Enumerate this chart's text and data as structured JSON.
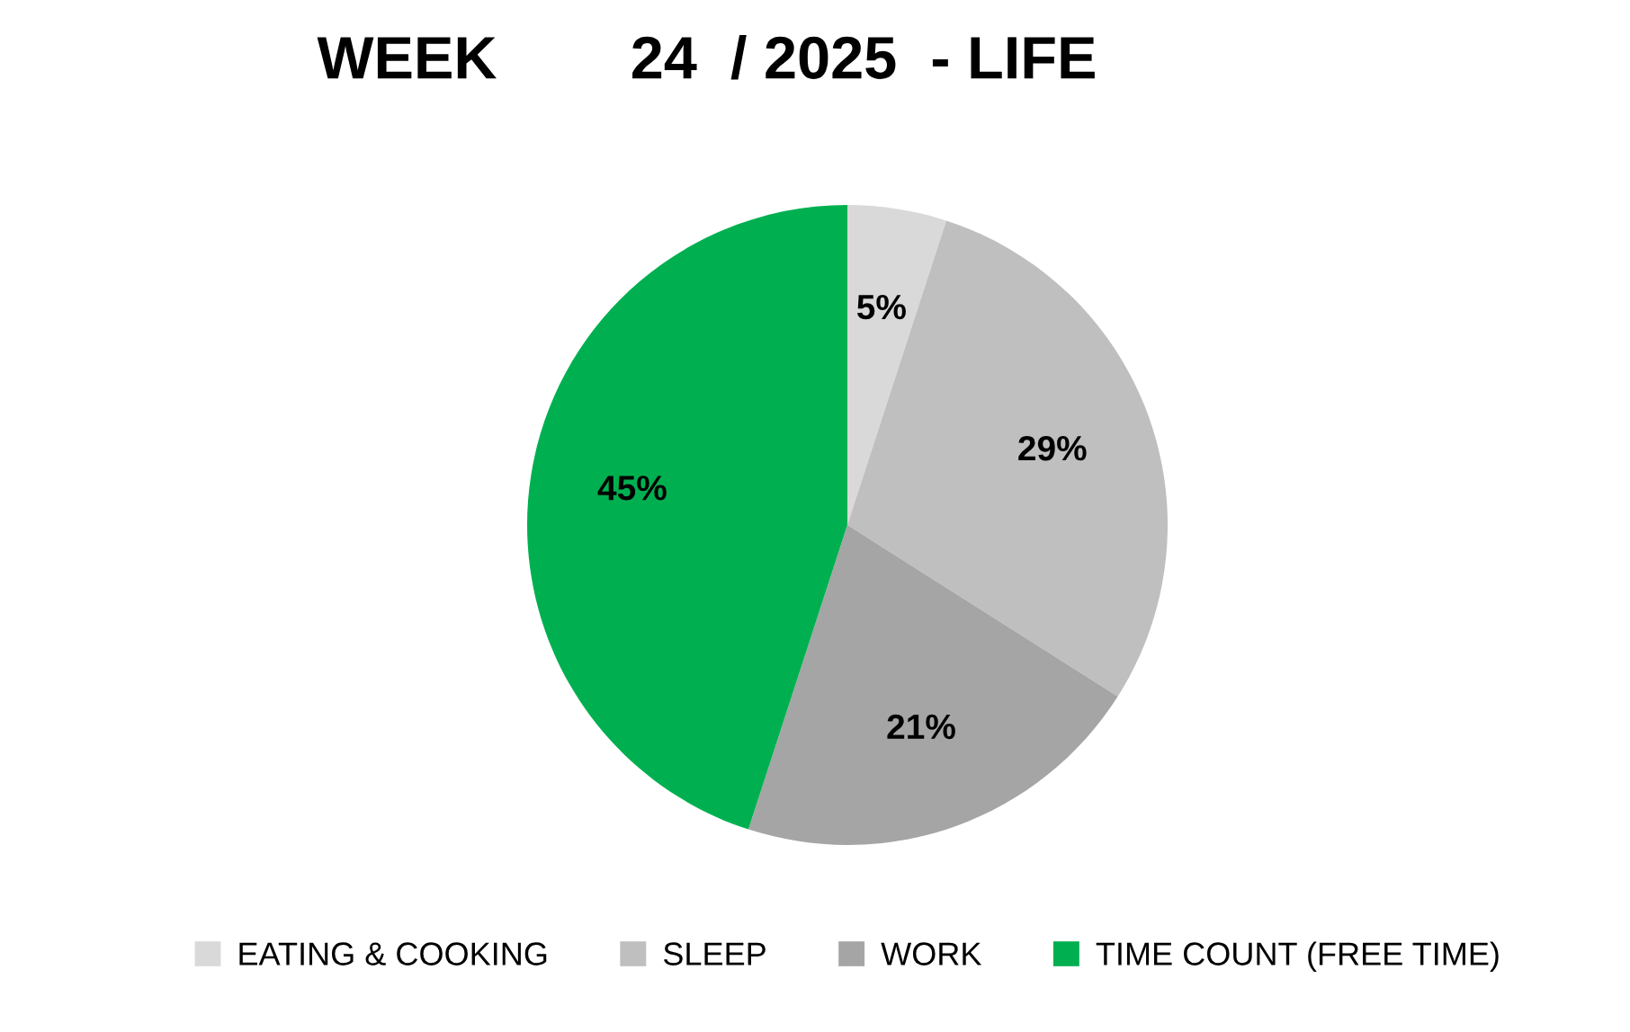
{
  "chart_data": {
    "type": "pie",
    "title": "WEEK        24  / 2025  - LIFE",
    "categories": [
      "EATING & COOKING",
      "SLEEP",
      "WORK",
      "TIME COUNT (FREE TIME)"
    ],
    "values": [
      5,
      29,
      21,
      45
    ],
    "value_labels": [
      "5%",
      "29%",
      "21%",
      "45%"
    ],
    "colors": [
      "#d9d9d9",
      "#bfbfbf",
      "#a5a5a5",
      "#00b050"
    ],
    "legend": "bottom"
  }
}
